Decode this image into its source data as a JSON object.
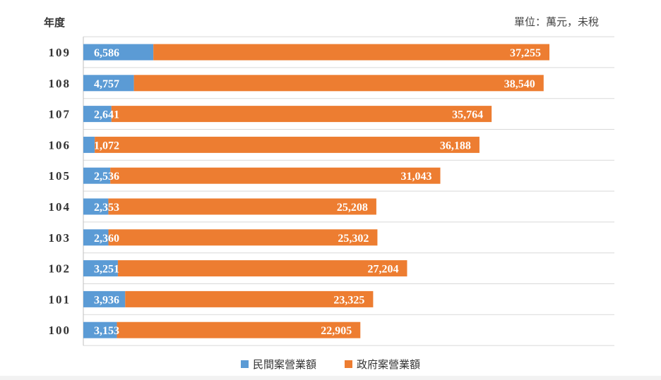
{
  "header": {
    "y_axis_title": "年度",
    "unit_note": "單位：萬元，未稅"
  },
  "colors": {
    "private": "#5b9bd5",
    "government": "#ed7d31",
    "grid": "#d9d9d9",
    "axis": "#bfbfbf"
  },
  "chart_data": {
    "type": "bar",
    "orientation": "horizontal",
    "stacked": true,
    "categories": [
      "109",
      "108",
      "107",
      "106",
      "105",
      "104",
      "103",
      "102",
      "101",
      "100"
    ],
    "series": [
      {
        "name": "民間案營業額",
        "values": [
          6586,
          4757,
          2641,
          1072,
          2536,
          2353,
          2360,
          3251,
          3936,
          3153
        ]
      },
      {
        "name": "政府案營業額",
        "values": [
          37255,
          38540,
          35764,
          36188,
          31043,
          25208,
          25302,
          27204,
          23325,
          22905
        ]
      }
    ],
    "data_labels": {
      "private": [
        "6,586",
        "4,757",
        "2,641",
        "1,072",
        "2,536",
        "2,353",
        "2,360",
        "3,251",
        "3,936",
        "3,153"
      ],
      "government": [
        "37,255",
        "38,540",
        "35,764",
        "36,188",
        "31,043",
        "25,208",
        "25,302",
        "27,204",
        "23,325",
        "22,905"
      ]
    },
    "ylabel": "年度",
    "grid": true,
    "legend_position": "bottom"
  },
  "legend": {
    "items": [
      {
        "label": "民間案營業額"
      },
      {
        "label": "政府案營業額"
      }
    ]
  }
}
